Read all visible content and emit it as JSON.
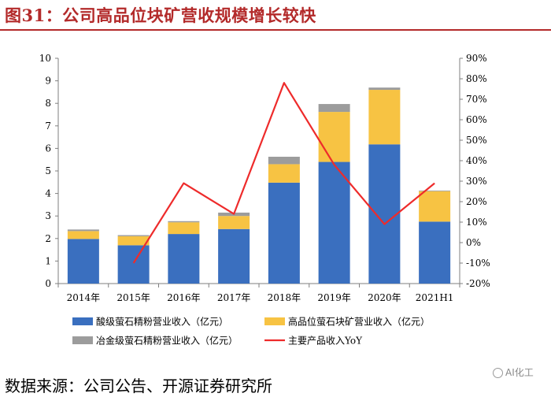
{
  "header": {
    "title": "图31：公司高品位块矿营收规模增长较快"
  },
  "footer": {
    "source": "数据来源：公司公告、开源证券研究所",
    "watermark": "AI化工"
  },
  "colors": {
    "acid": "#3a6fbf",
    "high": "#f7c343",
    "metal": "#9c9c9c",
    "yoy": "#ee2b2b",
    "brand": "#b32a2a"
  },
  "chart_data": {
    "type": "bar",
    "stacked": true,
    "categories": [
      "2014年",
      "2015年",
      "2016年",
      "2017年",
      "2018年",
      "2019年",
      "2020年",
      "2021H1"
    ],
    "series": [
      {
        "name": "酸级萤石精粉营业收入（亿元）",
        "values": [
          1.98,
          1.7,
          2.2,
          2.42,
          4.48,
          5.4,
          6.18,
          2.75
        ]
      },
      {
        "name": "高品位萤石块矿营业收入（亿元）",
        "values": [
          0.35,
          0.4,
          0.52,
          0.58,
          0.82,
          2.22,
          2.42,
          1.35
        ]
      },
      {
        "name": "冶金级萤石精粉营业收入（亿元）",
        "values": [
          0.07,
          0.05,
          0.05,
          0.15,
          0.33,
          0.35,
          0.1,
          0.03
        ]
      }
    ],
    "line": {
      "name": "主要产品收入YoY",
      "values": [
        null,
        -10,
        29,
        14,
        78,
        38,
        9,
        29
      ]
    },
    "yleft": {
      "min": 0,
      "max": 10,
      "ticks": [
        "0",
        "1",
        "2",
        "3",
        "4",
        "5",
        "6",
        "7",
        "8",
        "9",
        "10"
      ]
    },
    "yright": {
      "min": -20,
      "max": 90,
      "ticks": [
        "-20%",
        "-10%",
        "0%",
        "10%",
        "20%",
        "30%",
        "40%",
        "50%",
        "60%",
        "70%",
        "80%",
        "90%"
      ]
    },
    "legend_position": "bottom"
  }
}
